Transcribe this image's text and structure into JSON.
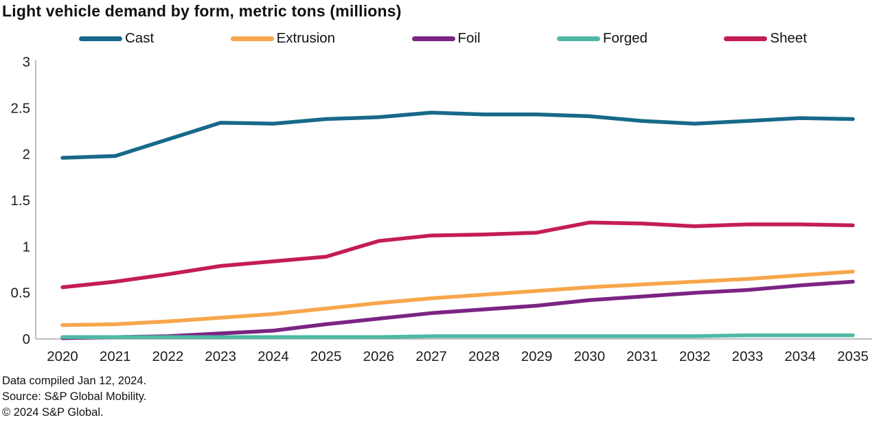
{
  "title": "Light vehicle demand by form, metric tons (millions)",
  "footer": {
    "compiled": "Data compiled Jan 12, 2024.",
    "source": "Source: S&P Global Mobility.",
    "copyright": "© 2024 S&P Global."
  },
  "chart_data": {
    "type": "line",
    "title": "Light vehicle demand by form, metric tons (millions)",
    "xlabel": "",
    "ylabel": "",
    "x": [
      2020,
      2021,
      2022,
      2023,
      2024,
      2025,
      2026,
      2027,
      2028,
      2029,
      2030,
      2031,
      2032,
      2033,
      2034,
      2035
    ],
    "series": [
      {
        "name": "Cast",
        "color": "#17698A",
        "values": [
          1.96,
          1.98,
          2.16,
          2.34,
          2.33,
          2.38,
          2.4,
          2.45,
          2.43,
          2.43,
          2.41,
          2.36,
          2.33,
          2.36,
          2.39,
          2.38
        ]
      },
      {
        "name": "Extrusion",
        "color": "#F7A64C",
        "values": [
          0.15,
          0.16,
          0.19,
          0.23,
          0.27,
          0.33,
          0.39,
          0.44,
          0.48,
          0.52,
          0.56,
          0.59,
          0.62,
          0.65,
          0.69,
          0.73
        ]
      },
      {
        "name": "Foil",
        "color": "#7B2483",
        "values": [
          0.01,
          0.02,
          0.03,
          0.06,
          0.09,
          0.16,
          0.22,
          0.28,
          0.32,
          0.36,
          0.42,
          0.46,
          0.5,
          0.53,
          0.58,
          0.62
        ]
      },
      {
        "name": "Forged",
        "color": "#4FB9A4",
        "values": [
          0.02,
          0.02,
          0.02,
          0.02,
          0.02,
          0.02,
          0.02,
          0.03,
          0.03,
          0.03,
          0.03,
          0.03,
          0.03,
          0.04,
          0.04,
          0.04
        ]
      },
      {
        "name": "Sheet",
        "color": "#C41C59",
        "values": [
          0.56,
          0.62,
          0.7,
          0.79,
          0.84,
          0.89,
          1.06,
          1.12,
          1.13,
          1.15,
          1.26,
          1.25,
          1.22,
          1.24,
          1.24,
          1.23
        ]
      }
    ],
    "ylim": [
      0,
      3
    ],
    "y_ticks": [
      0,
      0.5,
      1,
      1.5,
      2,
      2.5,
      3
    ],
    "grid": false,
    "legend_position": "top",
    "axis_color": "#ABABAB"
  }
}
